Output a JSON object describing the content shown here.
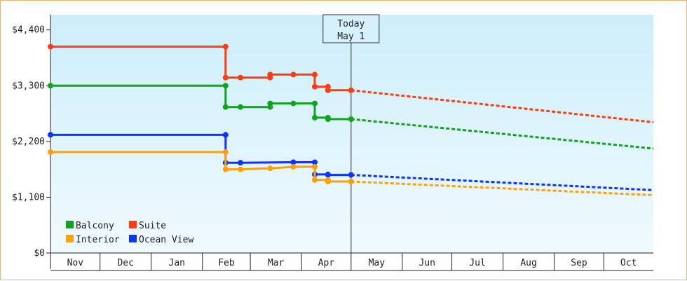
{
  "chart_data": {
    "type": "line",
    "ylim": [
      0,
      4700
    ],
    "y_ticks": [
      0,
      1100,
      2200,
      3300,
      4400
    ],
    "y_tick_labels": [
      "$0",
      "$1,100",
      "$2,200",
      "$3,300",
      "$4,400"
    ],
    "month_labels": [
      "Nov",
      "Dec",
      "Jan",
      "Feb",
      "Mar",
      "Apr",
      "May",
      "Jun",
      "Jul",
      "Aug",
      "Sep",
      "Oct"
    ],
    "x_start": "2023-11-01",
    "x_end": "2024-10-31",
    "today": {
      "date": "2024-05-01",
      "label_line1": "Today",
      "label_line2": "May 1"
    },
    "series": [
      {
        "name": "Suite",
        "color": "#ff3c0f",
        "history": [
          [
            "2023-11-01",
            4070
          ],
          [
            "2024-02-15",
            4070
          ],
          [
            "2024-02-15",
            3460
          ],
          [
            "2024-02-24",
            3460
          ],
          [
            "2024-03-13",
            3460
          ],
          [
            "2024-03-13",
            3520
          ],
          [
            "2024-03-27",
            3520
          ],
          [
            "2024-04-09",
            3520
          ],
          [
            "2024-04-09",
            3280
          ],
          [
            "2024-04-17",
            3280
          ],
          [
            "2024-04-17",
            3210
          ],
          [
            "2024-05-01",
            3210
          ]
        ],
        "forecast": [
          [
            "2024-05-01",
            3210
          ],
          [
            "2024-10-31",
            2580
          ]
        ]
      },
      {
        "name": "Balcony",
        "color": "#11a31d",
        "history": [
          [
            "2023-11-01",
            3300
          ],
          [
            "2024-02-15",
            3300
          ],
          [
            "2024-02-15",
            2880
          ],
          [
            "2024-02-24",
            2880
          ],
          [
            "2024-03-13",
            2880
          ],
          [
            "2024-03-13",
            2950
          ],
          [
            "2024-03-27",
            2950
          ],
          [
            "2024-04-09",
            2950
          ],
          [
            "2024-04-09",
            2670
          ],
          [
            "2024-04-17",
            2670
          ],
          [
            "2024-04-17",
            2640
          ],
          [
            "2024-05-01",
            2640
          ]
        ],
        "forecast": [
          [
            "2024-05-01",
            2640
          ],
          [
            "2024-10-31",
            2060
          ]
        ]
      },
      {
        "name": "Ocean View",
        "color": "#1033ff",
        "history": [
          [
            "2023-11-01",
            2330
          ],
          [
            "2024-02-15",
            2330
          ],
          [
            "2024-02-15",
            1780
          ],
          [
            "2024-02-24",
            1780
          ],
          [
            "2024-03-27",
            1790
          ],
          [
            "2024-04-09",
            1790
          ],
          [
            "2024-04-09",
            1550
          ],
          [
            "2024-04-17",
            1550
          ],
          [
            "2024-04-17",
            1540
          ],
          [
            "2024-05-01",
            1540
          ]
        ],
        "forecast": [
          [
            "2024-05-01",
            1540
          ],
          [
            "2024-10-31",
            1240
          ]
        ]
      },
      {
        "name": "Interior",
        "color": "#ffa00a",
        "history": [
          [
            "2023-11-01",
            1990
          ],
          [
            "2024-02-15",
            1990
          ],
          [
            "2024-02-15",
            1650
          ],
          [
            "2024-02-24",
            1650
          ],
          [
            "2024-03-13",
            1670
          ],
          [
            "2024-03-27",
            1700
          ],
          [
            "2024-04-09",
            1700
          ],
          [
            "2024-04-09",
            1440
          ],
          [
            "2024-04-17",
            1440
          ],
          [
            "2024-04-17",
            1410
          ],
          [
            "2024-05-01",
            1410
          ]
        ],
        "forecast": [
          [
            "2024-05-01",
            1410
          ],
          [
            "2024-10-31",
            1140
          ]
        ]
      }
    ],
    "legend": [
      {
        "name": "Balcony",
        "color": "#11a31d"
      },
      {
        "name": "Suite",
        "color": "#ff3c0f"
      },
      {
        "name": "Interior",
        "color": "#ffa00a"
      },
      {
        "name": "Ocean View",
        "color": "#1033ff"
      }
    ],
    "legend_placement": "bottom-left",
    "grid": false,
    "colors": {
      "plot_top": "#cdeefb",
      "plot_bottom": "#f0fafe",
      "border": "#e8b56a",
      "axis": "#222222",
      "today_line": "#333333"
    }
  }
}
